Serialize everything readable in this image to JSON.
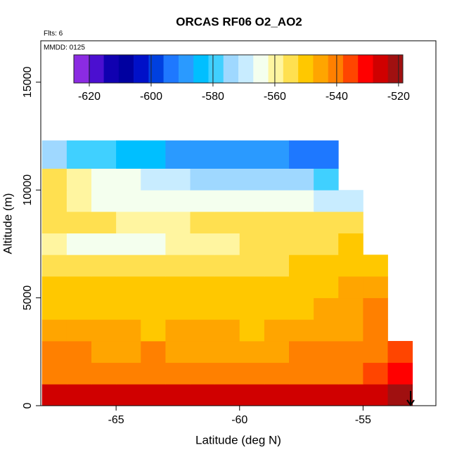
{
  "chart_data": {
    "type": "heatmap",
    "title": "ORCAS RF06 O2_AO2",
    "annotations": [
      "Flts: 6",
      "MMDD: 0125"
    ],
    "x_label": "Latitude (deg N)",
    "y_label": "Altitude (m)",
    "xlim": [
      -68.05,
      -52.05
    ],
    "ylim": [
      0,
      16920
    ],
    "xticks": [
      -65,
      -60,
      -55
    ],
    "yticks": [
      0,
      5000,
      10000,
      15000
    ],
    "xbins": [
      -68,
      -67,
      -66,
      -65,
      -64,
      -63,
      -62,
      -61,
      -60,
      -59,
      -58,
      -57,
      -56,
      -55,
      -54,
      -53
    ],
    "ybins": [
      0,
      1000,
      2000,
      3000,
      4000,
      5000,
      6000,
      7000,
      8000,
      9000,
      10000,
      11000,
      12300
    ],
    "values": [
      [
        -525,
        -525,
        -528,
        -528,
        -528,
        -528,
        -528,
        -528,
        -528,
        -528,
        -528,
        -528,
        -528,
        -525,
        -522
      ],
      [
        -540,
        -538,
        -538,
        -540,
        -540,
        -540,
        -538,
        -538,
        -540,
        -540,
        -540,
        -538,
        -538,
        -535,
        -532
      ],
      [
        -542,
        -542,
        -543,
        -543,
        -542,
        -543,
        -543,
        -544,
        -543,
        -543,
        -542,
        -542,
        -540,
        -538,
        -535
      ],
      [
        -546,
        -547,
        -547,
        -546,
        -548,
        -547,
        -546,
        -547,
        -548,
        -547,
        -546,
        -545,
        -543,
        -540,
        null
      ],
      [
        -550,
        -550,
        -549,
        -550,
        -549,
        -550,
        -550,
        -549,
        -549,
        -549,
        -548,
        -546,
        -544,
        -542,
        null
      ],
      [
        -552,
        -552,
        -551,
        -552,
        -552,
        -551,
        -552,
        -552,
        -551,
        -551,
        -550,
        -549,
        -547,
        -545,
        null
      ],
      [
        -555,
        -556,
        -555,
        -555,
        -556,
        -555,
        -554,
        -554,
        -553,
        -553,
        -552,
        -551,
        -550,
        -548,
        null
      ],
      [
        -558,
        -565,
        -566,
        -565,
        -564,
        -562,
        -560,
        -558,
        -556,
        -556,
        -555,
        -553,
        -552,
        null,
        null
      ],
      [
        -556,
        -556,
        -557,
        -558,
        -558,
        -558,
        -557,
        -556,
        -556,
        -556,
        -555,
        -555,
        -556,
        null,
        null
      ],
      [
        -557,
        -560,
        -563,
        -565,
        -566,
        -566,
        -566,
        -566,
        -565,
        -565,
        -566,
        -568,
        -570,
        null,
        null
      ],
      [
        -556,
        -560,
        -563,
        -566,
        -570,
        -571,
        -572,
        -572,
        -572,
        -573,
        -575,
        -578,
        null,
        null,
        null
      ],
      [
        -575,
        -578,
        -580,
        -582,
        -585,
        -587,
        -588,
        -588,
        -588,
        -590,
        -592,
        -595,
        null,
        null,
        null
      ]
    ],
    "colorbar": {
      "lim": [
        -625,
        -518.6
      ],
      "ticks": [
        -620,
        -600,
        -580,
        -560,
        -540,
        -520
      ],
      "colors": [
        "#8b2be2",
        "#4b0fd0",
        "#1000b0",
        "#0000a0",
        "#0010c8",
        "#0040e0",
        "#1e78ff",
        "#2a9aff",
        "#00bfff",
        "#40d0ff",
        "#9fd8ff",
        "#c8ecff",
        "#f4ffee",
        "#fff5a0",
        "#ffe050",
        "#ffc800",
        "#ffa500",
        "#ff8000",
        "#ff4500",
        "#ff0000",
        "#d00000",
        "#a01010"
      ]
    }
  }
}
